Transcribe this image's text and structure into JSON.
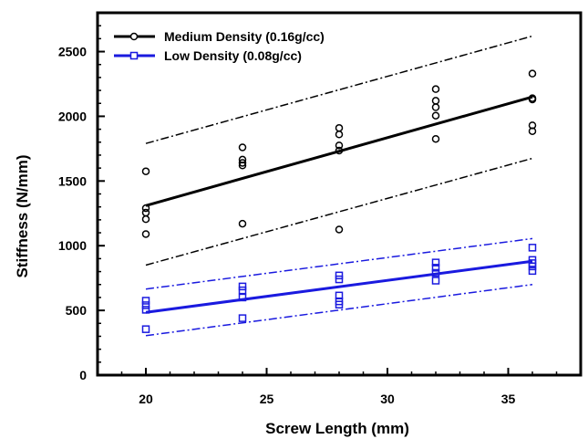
{
  "chart_data": {
    "type": "scatter",
    "xlabel": "Screw Length (mm)",
    "ylabel": "Stiffness (N/mm)",
    "xlim": [
      18,
      38
    ],
    "ylim": [
      0,
      2800
    ],
    "xticks": [
      20,
      25,
      30,
      35
    ],
    "yticks": [
      0,
      500,
      1000,
      1500,
      2000,
      2500
    ],
    "xtick_labels": [
      "20",
      "25",
      "30",
      "35"
    ],
    "ytick_labels": [
      "0",
      "500",
      "1000",
      "1500",
      "2000",
      "2500"
    ],
    "grid": false,
    "legend_position": "top-left",
    "series": [
      {
        "name": "Medium Density (0.16g/cc)",
        "color": "#000000",
        "marker": "circle",
        "points": [
          [
            20,
            1575
          ],
          [
            20,
            1290
          ],
          [
            20,
            1255
          ],
          [
            20,
            1205
          ],
          [
            20,
            1090
          ],
          [
            24,
            1760
          ],
          [
            24,
            1665
          ],
          [
            24,
            1640
          ],
          [
            24,
            1620
          ],
          [
            24,
            1170
          ],
          [
            28,
            1910
          ],
          [
            28,
            1860
          ],
          [
            28,
            1775
          ],
          [
            28,
            1735
          ],
          [
            28,
            1125
          ],
          [
            32,
            2210
          ],
          [
            32,
            2120
          ],
          [
            32,
            2070
          ],
          [
            32,
            2005
          ],
          [
            32,
            1825
          ],
          [
            36,
            2330
          ],
          [
            36,
            2140
          ],
          [
            36,
            2130
          ],
          [
            36,
            1930
          ],
          [
            36,
            1885
          ]
        ],
        "fit": [
          [
            20,
            1310
          ],
          [
            36,
            2150
          ]
        ],
        "upper_band": [
          [
            20,
            1790
          ],
          [
            36,
            2620
          ]
        ],
        "lower_band": [
          [
            20,
            850
          ],
          [
            36,
            1675
          ]
        ]
      },
      {
        "name": "Low Density (0.08g/cc)",
        "color": "#1a1adf",
        "marker": "square",
        "points": [
          [
            20,
            575
          ],
          [
            20,
            540
          ],
          [
            20,
            505
          ],
          [
            20,
            355
          ],
          [
            24,
            685
          ],
          [
            24,
            655
          ],
          [
            24,
            600
          ],
          [
            24,
            440
          ],
          [
            28,
            770
          ],
          [
            28,
            740
          ],
          [
            28,
            615
          ],
          [
            28,
            570
          ],
          [
            28,
            545
          ],
          [
            32,
            870
          ],
          [
            32,
            830
          ],
          [
            32,
            790
          ],
          [
            32,
            730
          ],
          [
            36,
            985
          ],
          [
            36,
            890
          ],
          [
            36,
            865
          ],
          [
            36,
            840
          ],
          [
            36,
            805
          ]
        ],
        "fit": [
          [
            20,
            485
          ],
          [
            36,
            880
          ]
        ],
        "upper_band": [
          [
            20,
            665
          ],
          [
            36,
            1055
          ]
        ],
        "lower_band": [
          [
            20,
            305
          ],
          [
            36,
            700
          ]
        ]
      }
    ]
  }
}
